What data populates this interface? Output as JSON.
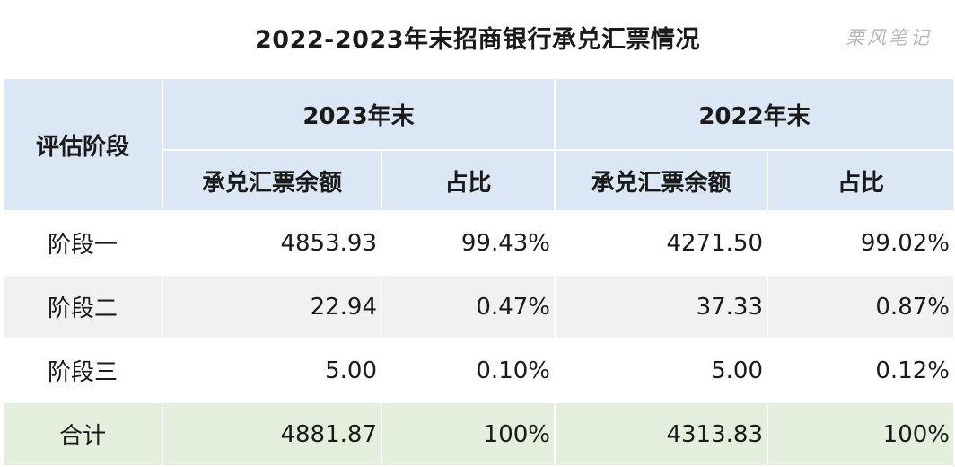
{
  "title": "2022-2023年末招商银行承兑汇票情况",
  "watermark": "栗风笔记",
  "header": {
    "stage_label": "评估阶段",
    "year_2023": "2023年末",
    "year_2022": "2022年末",
    "amount_label": "承兑汇票余额",
    "ratio_label": "占比"
  },
  "rows": [
    {
      "stage": "阶段一",
      "amt_2023": "4853.93",
      "ratio_2023": "99.43%",
      "amt_2022": "4271.50",
      "ratio_2022": "99.02%"
    },
    {
      "stage": "阶段二",
      "amt_2023": "22.94",
      "ratio_2023": "0.47%",
      "amt_2022": "37.33",
      "ratio_2022": "0.87%"
    },
    {
      "stage": "阶段三",
      "amt_2023": "5.00",
      "ratio_2023": "0.10%",
      "amt_2022": "5.00",
      "ratio_2022": "0.12%"
    },
    {
      "stage": "合计",
      "amt_2023": "4881.87",
      "ratio_2023": "100%",
      "amt_2022": "4313.83",
      "ratio_2022": "100%"
    }
  ],
  "colors": {
    "header_bg": "#dce7f5",
    "alt_row_bg": "#f1f1f1",
    "total_row_bg": "#e3efdc",
    "watermark": "#b8b8b8"
  }
}
